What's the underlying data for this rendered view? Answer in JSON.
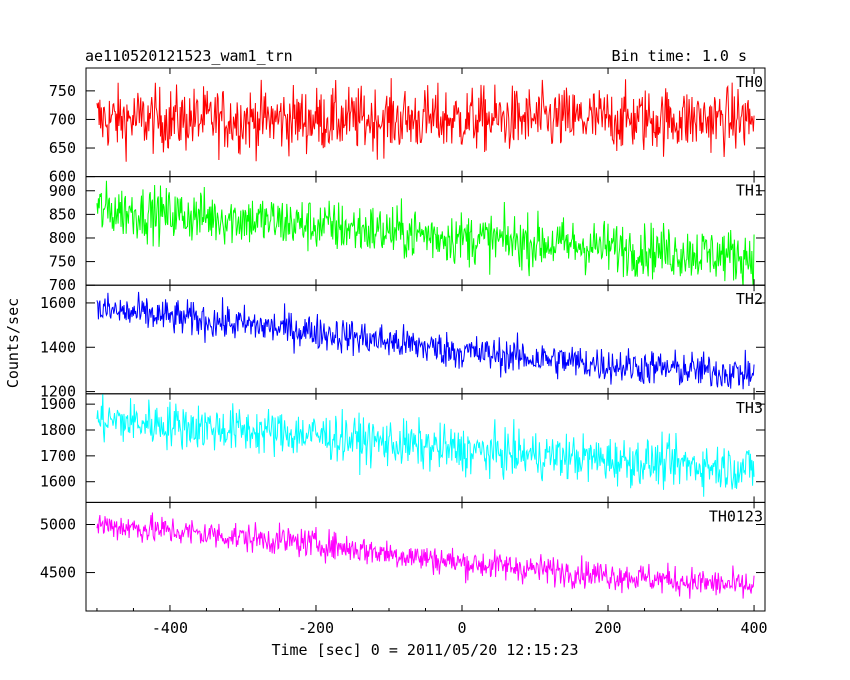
{
  "header": {
    "title": "ae110520121523_wam1_trn",
    "bin_time": "Bin time: 1.0 s"
  },
  "chart_data": {
    "type": "line",
    "xlabel": "Time [sec] 0 = 2011/05/20 12:15:23",
    "ylabel": "Counts/sec",
    "xlim": [
      -515,
      415
    ],
    "x_range": [
      -500,
      400
    ],
    "x_step": 1.0,
    "x_ticks": [
      -400,
      -200,
      0,
      200,
      400
    ],
    "grid": false,
    "panels": [
      {
        "name": "TH0",
        "color": "#ff0000",
        "ylim": [
          600,
          790
        ],
        "y_ticks": [
          600,
          650,
          700,
          750
        ],
        "trend": [
          [
            -500,
            700
          ],
          [
            400,
            700
          ]
        ],
        "noise": 28
      },
      {
        "name": "TH1",
        "color": "#00ff00",
        "ylim": [
          700,
          930
        ],
        "y_ticks": [
          700,
          750,
          800,
          850,
          900
        ],
        "trend": [
          [
            -500,
            860
          ],
          [
            -300,
            840
          ],
          [
            0,
            800
          ],
          [
            400,
            760
          ]
        ],
        "noise": 28
      },
      {
        "name": "TH2",
        "color": "#0000ff",
        "ylim": [
          1190,
          1680
        ],
        "y_ticks": [
          1200,
          1400,
          1600
        ],
        "trend": [
          [
            -500,
            1570
          ],
          [
            -200,
            1470
          ],
          [
            0,
            1380
          ],
          [
            200,
            1320
          ],
          [
            400,
            1280
          ]
        ],
        "noise": 40
      },
      {
        "name": "TH3",
        "color": "#00ffff",
        "ylim": [
          1520,
          1940
        ],
        "y_ticks": [
          1600,
          1700,
          1800,
          1900
        ],
        "trend": [
          [
            -500,
            1840
          ],
          [
            -200,
            1780
          ],
          [
            0,
            1720
          ],
          [
            400,
            1650
          ]
        ],
        "noise": 45
      },
      {
        "name": "TH0123",
        "color": "#ff00ff",
        "ylim": [
          4100,
          5230
        ],
        "y_ticks": [
          4500,
          5000
        ],
        "trend": [
          [
            -500,
            5000
          ],
          [
            -200,
            4800
          ],
          [
            0,
            4600
          ],
          [
            400,
            4350
          ]
        ],
        "noise": 75
      }
    ]
  }
}
